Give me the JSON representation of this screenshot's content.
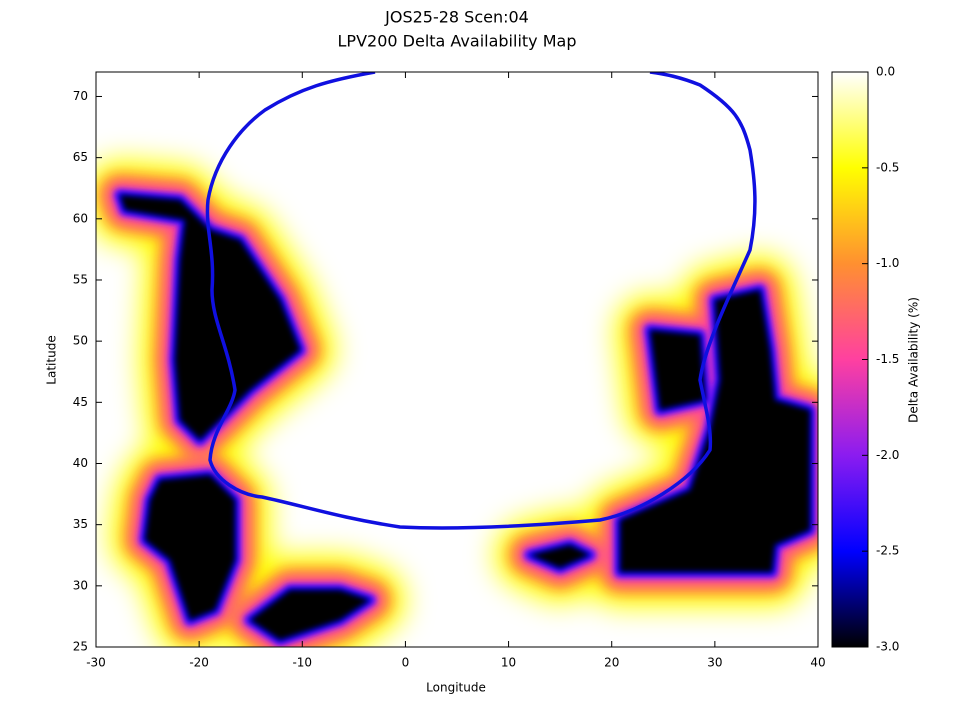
{
  "chart_data": {
    "type": "heatmap",
    "title": "JOS25-28 Scen:04",
    "subtitle": "LPV200 Delta Availability Map",
    "x_label": "Longitude",
    "y_label": "Latitude",
    "colorbar_label": "Delta Availability (%)",
    "xlim": [
      -30,
      40
    ],
    "ylim": [
      25,
      72
    ],
    "xticks": [
      -30,
      -20,
      -10,
      0,
      10,
      20,
      30,
      40
    ],
    "yticks": [
      25,
      30,
      35,
      40,
      45,
      50,
      55,
      60,
      65,
      70
    ],
    "zlim": [
      -3,
      0
    ],
    "zticks": [
      {
        "value": 0,
        "label": "0.0"
      },
      -0.5,
      {
        "value": -1,
        "label": "-1.0"
      },
      -1.5,
      {
        "value": -2,
        "label": "-2.0"
      },
      -2.5,
      {
        "value": -3,
        "label": "-3.0"
      }
    ],
    "palette": [
      "#000000",
      "#0000ff",
      "#8b1cf0",
      "#ff40a0",
      "#ff9030",
      "#ffff00",
      "#ffffff"
    ],
    "contour_color": "#1010e0"
  }
}
